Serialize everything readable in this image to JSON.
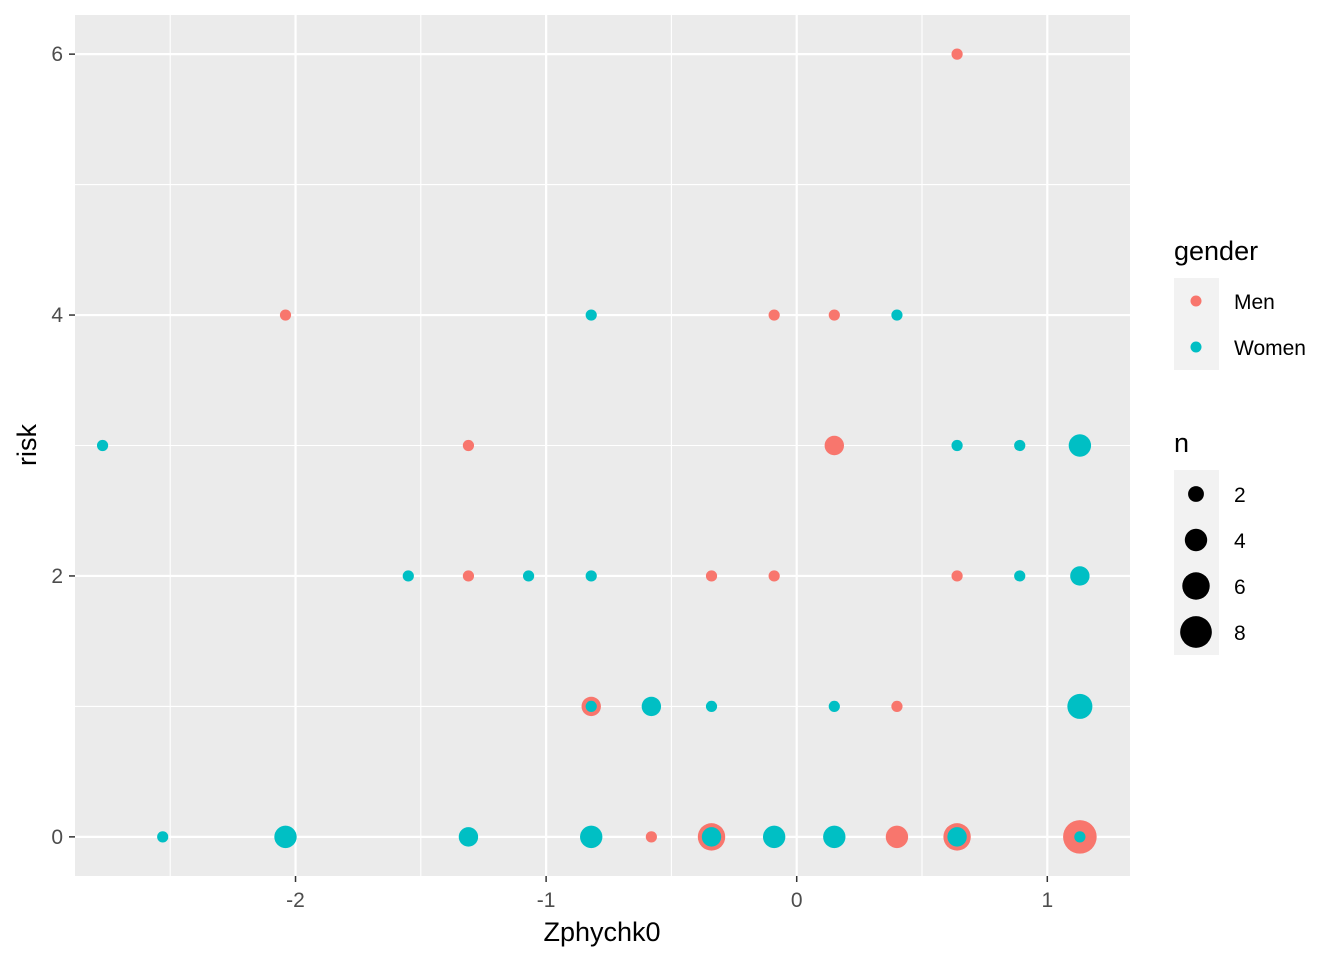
{
  "chart_data": {
    "type": "scatter",
    "xlabel": "Zphychk0",
    "ylabel": "risk",
    "xlim": [
      -2.88,
      1.33
    ],
    "ylim": [
      -0.3,
      6.3
    ],
    "x_ticks": [
      -2,
      -1,
      0,
      1
    ],
    "x_tick_labels": [
      "-2",
      "-1",
      "0",
      "1"
    ],
    "y_ticks": [
      0,
      2,
      4,
      6
    ],
    "y_tick_labels": [
      "0",
      "2",
      "4",
      "6"
    ],
    "grid": true,
    "legend_position": "right",
    "color_legend": {
      "title": "gender",
      "entries": [
        {
          "label": "Men",
          "color": "#F8766D"
        },
        {
          "label": "Women",
          "color": "#00BFC4"
        }
      ]
    },
    "size_legend": {
      "title": "n",
      "entries": [
        {
          "label": "2",
          "value": 2
        },
        {
          "label": "4",
          "value": 4
        },
        {
          "label": "6",
          "value": 6
        },
        {
          "label": "8",
          "value": 8
        }
      ]
    },
    "series": [
      {
        "name": "Men",
        "color": "#F8766D",
        "points": [
          {
            "x": 0.64,
            "y": 6,
            "n": 1
          },
          {
            "x": -2.04,
            "y": 4,
            "n": 1
          },
          {
            "x": -0.09,
            "y": 4,
            "n": 1
          },
          {
            "x": 0.15,
            "y": 4,
            "n": 1
          },
          {
            "x": -1.31,
            "y": 3,
            "n": 1
          },
          {
            "x": 0.15,
            "y": 3,
            "n": 3
          },
          {
            "x": -1.31,
            "y": 2,
            "n": 1
          },
          {
            "x": -0.34,
            "y": 2,
            "n": 1
          },
          {
            "x": -0.09,
            "y": 2,
            "n": 1
          },
          {
            "x": 0.64,
            "y": 2,
            "n": 1
          },
          {
            "x": -0.82,
            "y": 1,
            "n": 3
          },
          {
            "x": 0.4,
            "y": 1,
            "n": 1
          },
          {
            "x": -0.58,
            "y": 0,
            "n": 1
          },
          {
            "x": -0.34,
            "y": 0,
            "n": 6
          },
          {
            "x": 0.4,
            "y": 0,
            "n": 4
          },
          {
            "x": 0.64,
            "y": 0,
            "n": 6
          },
          {
            "x": 1.13,
            "y": 0,
            "n": 9
          }
        ]
      },
      {
        "name": "Women",
        "color": "#00BFC4",
        "points": [
          {
            "x": -0.82,
            "y": 4,
            "n": 1
          },
          {
            "x": 0.4,
            "y": 4,
            "n": 1
          },
          {
            "x": -2.77,
            "y": 3,
            "n": 1
          },
          {
            "x": 0.64,
            "y": 3,
            "n": 1
          },
          {
            "x": 0.89,
            "y": 3,
            "n": 1
          },
          {
            "x": 1.13,
            "y": 3,
            "n": 4
          },
          {
            "x": -1.55,
            "y": 2,
            "n": 1
          },
          {
            "x": -1.07,
            "y": 2,
            "n": 1
          },
          {
            "x": -0.82,
            "y": 2,
            "n": 1
          },
          {
            "x": 0.89,
            "y": 2,
            "n": 1
          },
          {
            "x": 1.13,
            "y": 2,
            "n": 3
          },
          {
            "x": -0.82,
            "y": 1,
            "n": 1
          },
          {
            "x": -0.58,
            "y": 1,
            "n": 3
          },
          {
            "x": -0.34,
            "y": 1,
            "n": 1
          },
          {
            "x": 0.15,
            "y": 1,
            "n": 1
          },
          {
            "x": 1.13,
            "y": 1,
            "n": 5
          },
          {
            "x": -2.53,
            "y": 0,
            "n": 1
          },
          {
            "x": -2.04,
            "y": 0,
            "n": 4
          },
          {
            "x": -1.31,
            "y": 0,
            "n": 3
          },
          {
            "x": -0.82,
            "y": 0,
            "n": 4
          },
          {
            "x": -0.34,
            "y": 0,
            "n": 3
          },
          {
            "x": -0.09,
            "y": 0,
            "n": 4
          },
          {
            "x": 0.15,
            "y": 0,
            "n": 4
          },
          {
            "x": 0.64,
            "y": 0,
            "n": 3
          },
          {
            "x": 1.13,
            "y": 0,
            "n": 1
          }
        ]
      }
    ]
  }
}
